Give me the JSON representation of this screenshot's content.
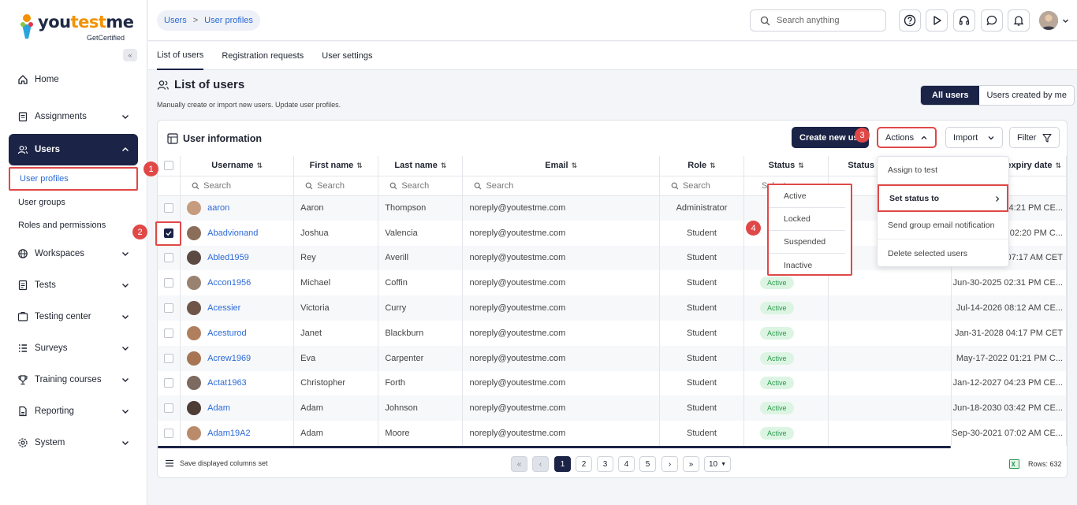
{
  "brand": {
    "name_part1": "you",
    "name_highlight": "test",
    "name_part2": "me",
    "tagline": "GetCertified"
  },
  "sidebar": {
    "collapse_label": "«",
    "items": [
      {
        "label": "Home",
        "icon": "home-icon"
      },
      {
        "label": "Assignments",
        "icon": "assignments-icon"
      },
      {
        "label": "Users",
        "icon": "users-icon"
      },
      {
        "label": "Workspaces",
        "icon": "globe-icon"
      },
      {
        "label": "Tests",
        "icon": "tests-icon"
      },
      {
        "label": "Testing center",
        "icon": "testing-center-icon"
      },
      {
        "label": "Surveys",
        "icon": "surveys-icon"
      },
      {
        "label": "Training courses",
        "icon": "trophy-icon"
      },
      {
        "label": "Reporting",
        "icon": "reporting-icon"
      },
      {
        "label": "System",
        "icon": "gear-icon"
      }
    ],
    "users_subitems": [
      "User profiles",
      "User groups",
      "Roles and permissions"
    ]
  },
  "breadcrumb": {
    "parent": "Users",
    "separator": ">",
    "current": "User profiles"
  },
  "topbar": {
    "search_placeholder": "Search anything"
  },
  "tabs": [
    "List of users",
    "Registration requests",
    "User settings"
  ],
  "page": {
    "title": "List of users",
    "subtitle": "Manually create or import new users. Update user profiles.",
    "filter_all": "All users",
    "filter_mine": "Users created by me"
  },
  "card": {
    "title": "User information",
    "create_label": "Create new user",
    "actions_label": "Actions",
    "import_label": "Import",
    "filter_label": "Filter"
  },
  "table": {
    "headers": [
      "Username",
      "First name",
      "Last name",
      "Email",
      "Role",
      "Status",
      "Status",
      "expiry date"
    ],
    "search_placeholder": "Search",
    "status_select_placeholder": "Select one",
    "rows": [
      {
        "username": "aaron",
        "first": "Aaron",
        "last": "Thompson",
        "email": "noreply@youtestme.com",
        "role": "Administrator",
        "status": "",
        "expiry": "04:21 PM CE...",
        "checked": false
      },
      {
        "username": "Abadvionand",
        "first": "Joshua",
        "last": "Valencia",
        "email": "noreply@youtestme.com",
        "role": "Student",
        "status": "",
        "expiry": "6 02:20 PM C...",
        "checked": true
      },
      {
        "username": "Abled1959",
        "first": "Rey",
        "last": "Averill",
        "email": "noreply@youtestme.com",
        "role": "Student",
        "status": "",
        "expiry": "8 07:17 AM CET",
        "checked": false
      },
      {
        "username": "Accon1956",
        "first": "Michael",
        "last": "Coffin",
        "email": "noreply@youtestme.com",
        "role": "Student",
        "status": "Active",
        "expiry": "Jun-30-2025 02:31 PM CE...",
        "checked": false
      },
      {
        "username": "Acessier",
        "first": "Victoria",
        "last": "Curry",
        "email": "noreply@youtestme.com",
        "role": "Student",
        "status": "Active",
        "expiry": "Jul-14-2026 08:12 AM CE...",
        "checked": false
      },
      {
        "username": "Acesturod",
        "first": "Janet",
        "last": "Blackburn",
        "email": "noreply@youtestme.com",
        "role": "Student",
        "status": "Active",
        "expiry": "Jan-31-2028 04:17 PM CET",
        "checked": false
      },
      {
        "username": "Acrew1969",
        "first": "Eva",
        "last": "Carpenter",
        "email": "noreply@youtestme.com",
        "role": "Student",
        "status": "Active",
        "expiry": "May-17-2022 01:21 PM C...",
        "checked": false
      },
      {
        "username": "Actat1963",
        "first": "Christopher",
        "last": "Forth",
        "email": "noreply@youtestme.com",
        "role": "Student",
        "status": "Active",
        "expiry": "Jan-12-2027 04:23 PM CE...",
        "checked": false
      },
      {
        "username": "Adam",
        "first": "Adam",
        "last": "Johnson",
        "email": "noreply@youtestme.com",
        "role": "Student",
        "status": "Active",
        "expiry": "Jun-18-2030 03:42 PM CE...",
        "checked": false
      },
      {
        "username": "Adam19A2",
        "first": "Adam",
        "last": "Moore",
        "email": "noreply@youtestme.com",
        "role": "Student",
        "status": "Active",
        "expiry": "Sep-30-2021 07:02 AM CE...",
        "checked": false
      }
    ]
  },
  "actions_menu": [
    "Assign to test",
    "Set status to",
    "Send group email notification",
    "Delete selected users"
  ],
  "status_submenu": [
    "Active",
    "Locked",
    "Suspended",
    "Inactive"
  ],
  "footer": {
    "save_columns": "Save displayed columns set",
    "pages": [
      "1",
      "2",
      "3",
      "4",
      "5"
    ],
    "current_page": "1",
    "page_size": "10",
    "rows_label": "Rows: 632"
  },
  "annotations": [
    "1",
    "2",
    "3",
    "4"
  ],
  "colors": {
    "navy": "#1b2346",
    "accent_orange": "#f39200",
    "link_blue": "#2b6ad8",
    "highlight_red": "#e04848",
    "active_green": "#2a9a4a"
  }
}
